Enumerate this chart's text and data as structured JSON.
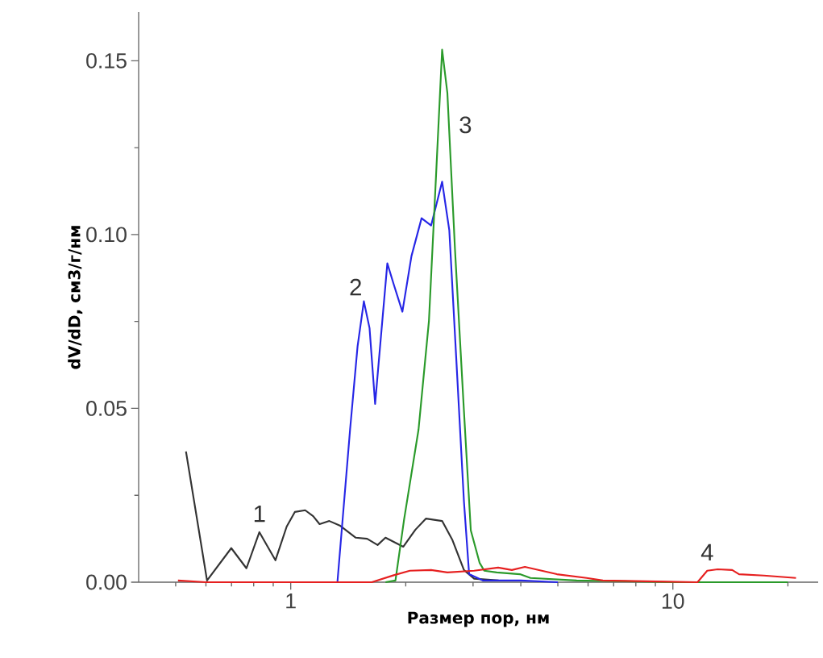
{
  "chart_data": {
    "type": "line",
    "xlabel": "Размер пор, нм",
    "ylabel": "dV/dD, см3/г/нм",
    "log": "x",
    "xlim": [
      0.4,
      24
    ],
    "ylim": [
      0,
      0.164
    ],
    "xticks": [
      {
        "value": 0.5,
        "label": null
      },
      {
        "value": 0.6,
        "label": null
      },
      {
        "value": 0.7,
        "label": null
      },
      {
        "value": 0.8,
        "label": null
      },
      {
        "value": 0.9,
        "label": null
      },
      1,
      {
        "value": 2,
        "label": null
      },
      {
        "value": 3,
        "label": null
      },
      {
        "value": 4,
        "label": null
      },
      {
        "value": 5,
        "label": null
      },
      {
        "value": 6,
        "label": null
      },
      {
        "value": 7,
        "label": null
      },
      {
        "value": 8,
        "label": null
      },
      {
        "value": 9,
        "label": null
      },
      10,
      {
        "value": 20,
        "label": null
      }
    ],
    "yticks": [
      {
        "value": 0,
        "label": "0.00"
      },
      {
        "value": 0.025,
        "label": null
      },
      {
        "value": 0.05,
        "label": "0.05"
      },
      {
        "value": 0.075,
        "label": null
      },
      {
        "value": 0.1,
        "label": "0.10"
      },
      {
        "value": 0.125,
        "label": null
      },
      {
        "value": 0.15,
        "label": "0.15"
      }
    ],
    "grid": false,
    "legend": false,
    "marker": "none",
    "line_style": "solid",
    "series": [
      {
        "name": "1",
        "color": "#333333",
        "x": [
          0.532,
          0.604,
          0.699,
          0.766,
          0.828,
          0.912,
          0.976,
          1.025,
          1.091,
          1.145,
          1.19,
          1.262,
          1.344,
          1.48,
          1.585,
          1.688,
          1.77,
          1.97,
          2.12,
          2.26,
          2.49,
          2.65,
          2.84,
          3.02,
          3.5
        ],
        "values": [
          0.0376,
          0.0005,
          0.0098,
          0.004,
          0.0144,
          0.0063,
          0.016,
          0.0202,
          0.0207,
          0.019,
          0.0167,
          0.0176,
          0.0163,
          0.0128,
          0.0125,
          0.0107,
          0.0128,
          0.0102,
          0.0151,
          0.0183,
          0.0176,
          0.0121,
          0.0035,
          0.001,
          0.0005
        ]
      },
      {
        "name": "2",
        "color": "#2626e6",
        "x": [
          1.325,
          1.43,
          1.496,
          1.554,
          1.608,
          1.663,
          1.72,
          1.79,
          1.86,
          1.96,
          2.07,
          2.2,
          2.33,
          2.49,
          2.6,
          2.71,
          2.84,
          2.93,
          3.18,
          4.0,
          5.0
        ],
        "values": [
          0.0,
          0.0439,
          0.0678,
          0.0808,
          0.0731,
          0.0513,
          0.0699,
          0.0917,
          0.0857,
          0.0778,
          0.0938,
          0.1047,
          0.1026,
          0.1152,
          0.1012,
          0.0648,
          0.0232,
          0.0023,
          0.0005,
          0.0005,
          0.0
        ]
      },
      {
        "name": "3",
        "color": "#2a9a2a",
        "x": [
          1.77,
          1.88,
          1.98,
          2.16,
          2.3,
          2.4,
          2.49,
          2.57,
          2.69,
          2.84,
          2.96,
          3.12,
          3.21,
          3.46,
          3.98,
          4.24,
          5.6,
          10,
          20
        ],
        "values": [
          0.0,
          0.0005,
          0.018,
          0.0439,
          0.0752,
          0.1168,
          0.1532,
          0.1407,
          0.0959,
          0.0492,
          0.0149,
          0.0056,
          0.0033,
          0.0028,
          0.0023,
          0.0012,
          0.0005,
          0.0,
          0.0
        ]
      },
      {
        "name": "4",
        "color": "#e62020",
        "x": [
          0.507,
          0.6,
          1.0,
          1.63,
          1.86,
          2.05,
          2.33,
          2.57,
          3.02,
          3.49,
          3.79,
          4.1,
          4.97,
          5.95,
          6.56,
          9.1,
          11.6,
          12.3,
          13.1,
          14.3,
          14.9,
          17.3,
          21
        ],
        "values": [
          0.0005,
          0.0,
          0.0,
          0.0,
          0.002,
          0.0033,
          0.0035,
          0.0028,
          0.0033,
          0.0042,
          0.0035,
          0.0044,
          0.0023,
          0.0012,
          0.0005,
          0.0002,
          0.0,
          0.0033,
          0.0037,
          0.0035,
          0.0023,
          0.0019,
          0.0012
        ]
      }
    ]
  }
}
